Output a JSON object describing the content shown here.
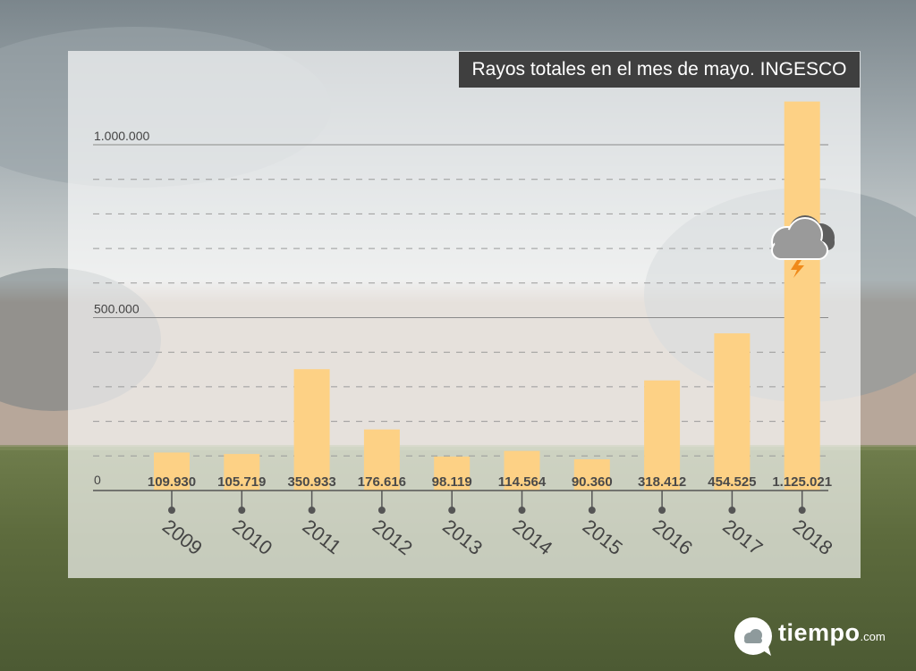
{
  "chart_data": {
    "type": "bar",
    "title": "Rayos totales en el mes de mayo. INGESCO",
    "xlabel": "",
    "ylabel": "",
    "categories": [
      "2009",
      "2010",
      "2011",
      "2012",
      "2013",
      "2014",
      "2015",
      "2016",
      "2017",
      "2018"
    ],
    "values": [
      109930,
      105719,
      350933,
      176616,
      98119,
      114564,
      90360,
      318412,
      454525,
      1125021
    ],
    "value_labels": [
      "109.930",
      "105.719",
      "350.933",
      "176.616",
      "98.119",
      "114.564",
      "90.360",
      "318.412",
      "454.525",
      "1.125.021"
    ],
    "yticks": [
      {
        "value": 0,
        "label": "0"
      },
      {
        "value": 500000,
        "label": "500.000"
      },
      {
        "value": 1000000,
        "label": "1.000.000"
      }
    ],
    "ylim": [
      0,
      1130000
    ],
    "grid": true,
    "bar_color": "#fdd185",
    "icon": "storm-cloud-icon"
  },
  "brand": {
    "name": "tiempo",
    "suffix": ".com",
    "icon": "chat-bubble-cloud-icon"
  }
}
